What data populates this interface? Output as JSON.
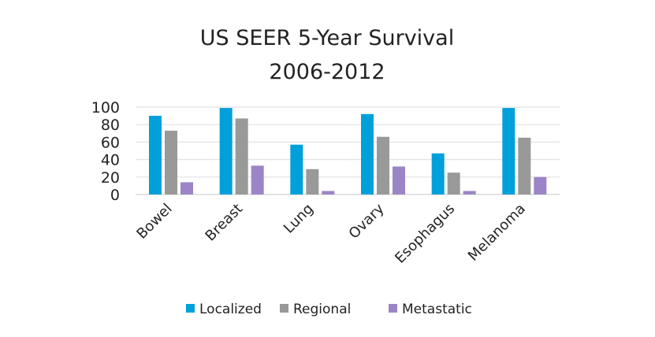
{
  "chart_data": {
    "type": "bar",
    "title": [
      "US SEER 5-Year Survival",
      "2006-2012"
    ],
    "xlabel": "",
    "ylabel": "",
    "ylim": [
      0,
      100
    ],
    "yticks": [
      0,
      20,
      40,
      60,
      80,
      100
    ],
    "grid": true,
    "legend_position": "bottom",
    "categories": [
      "Bowel",
      "Breast",
      "Lung",
      "Ovary",
      "Esophagus",
      "Melanoma"
    ],
    "series": [
      {
        "name": "Localized",
        "color": "#00A0DA",
        "values": [
          90,
          99,
          57,
          92,
          47,
          99
        ]
      },
      {
        "name": "Regional",
        "color": "#999999",
        "values": [
          73,
          87,
          29,
          66,
          25,
          65
        ]
      },
      {
        "name": "Metastatic",
        "color": "#9B85C6",
        "values": [
          14,
          33,
          4,
          32,
          4,
          20
        ]
      }
    ]
  }
}
